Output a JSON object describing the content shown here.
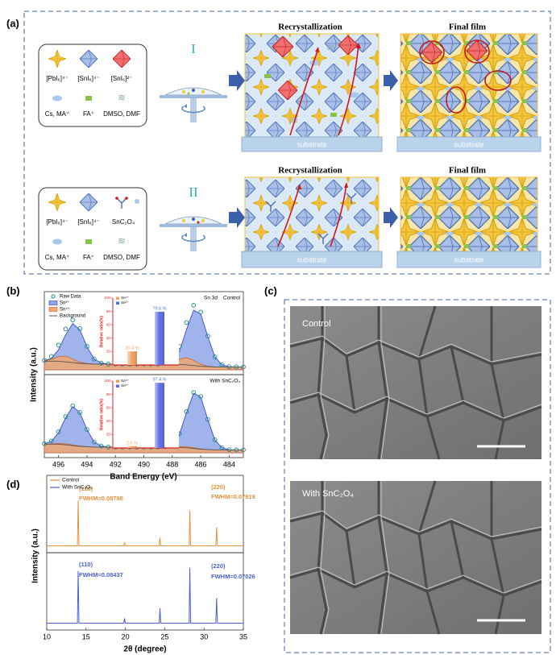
{
  "figure": {
    "panel_labels": [
      "(a)",
      "(b)",
      "(c)",
      "(d)"
    ],
    "a": {
      "routes": [
        "I",
        "II"
      ],
      "stage_titles": [
        "Recrystallization",
        "Final film"
      ],
      "substrate": "substrate",
      "legend_I": [
        "[PbI₆]⁴⁻",
        "[SnI₆]⁴⁻",
        "[SnI₆]²⁻",
        "Cs, MA⁺",
        "FA⁺",
        "DMSO, DMF"
      ],
      "legend_II": [
        "[PbI₆]⁴⁻",
        "[SnI₆]⁴⁻",
        "SnC₂O₄",
        "Cs, MA⁺",
        "FA⁺",
        "DMSO, DMF"
      ]
    },
    "c": {
      "images": [
        "Control",
        "With SnC₂O₄"
      ]
    }
  },
  "chart_data": [
    {
      "type": "line",
      "xlabel": "Band Energy (eV)",
      "ylabel": "Intensity (a.u.)",
      "annotation": "Sn 3d",
      "xlim": [
        497,
        483
      ],
      "xticks": [
        496,
        494,
        492,
        490,
        488,
        486,
        484
      ],
      "ylim": [
        0,
        100
      ],
      "x": [
        497,
        496.5,
        496,
        495.5,
        495,
        494.5,
        494,
        493.5,
        493,
        492.5,
        492,
        491.5,
        491,
        490.5,
        490,
        489.5,
        489,
        488.5,
        488,
        487.5,
        487,
        486.5,
        486,
        485.5,
        485,
        484.5,
        484,
        483.5,
        483
      ],
      "panels": [
        {
          "title": "Control",
          "series": [
            {
              "name": "Raw Data",
              "color": "#178a86",
              "values": [
                13.1,
                18.6,
                34.4,
                57,
                69.4,
                57.5,
                32.7,
                15,
                9.4,
                8,
                8,
                8,
                8,
                8,
                8,
                8,
                8,
                9.1,
                14.5,
                32.5,
                66,
                90,
                80.5,
                47,
                18,
                7,
                4.4,
                4,
                4
              ]
            },
            {
              "name": "Sn²⁺",
              "color": "#2a3fbf",
              "values": [
                12.6,
                16,
                28,
                49,
                64.5,
                56,
                32.5,
                15,
                9.4,
                8,
                8,
                8,
                8,
                8,
                8,
                8,
                8,
                8.6,
                12,
                25.5,
                56,
                83,
                78,
                46.5,
                18,
                7,
                4.4,
                4,
                4
              ]
            },
            {
              "name": "Sn⁴⁺",
              "color": "#d0602a",
              "values": [
                12.5,
                14.6,
                18.4,
                19,
                14.9,
                10.5,
                8.7,
                8,
                8,
                8,
                8,
                8,
                8,
                8,
                8,
                8,
                8,
                8.5,
                10.5,
                14.5,
                17,
                13,
                7.5,
                5,
                4,
                4,
                4,
                4,
                4
              ]
            },
            {
              "name": "Background",
              "color": "#555555",
              "values": [
                12,
                12,
                12,
                11,
                10,
                9,
                8.5,
                8,
                8,
                8,
                8,
                8,
                8,
                8,
                8,
                8,
                8,
                8,
                8,
                7.5,
                7,
                6,
                5,
                4.5,
                4,
                4,
                4,
                4,
                4
              ]
            }
          ],
          "inset": {
            "type": "bar",
            "ylabel": "Relative ratio(%)",
            "ylim": [
              0,
              100
            ],
            "yticks": [
              0,
              20,
              40,
              60,
              80,
              100
            ],
            "categories": [
              "Sn⁴⁺",
              "Sn²⁺"
            ],
            "colors": [
              "#f0a060",
              "#5a6ee0"
            ],
            "values": [
              20.4,
              79.6
            ],
            "value_labels": [
              "20.4 %",
              "79.6 %"
            ]
          }
        },
        {
          "title": "With SnC₂O₄",
          "series": [
            {
              "color": "#178a86",
              "values": [
                12.7,
                16.5,
                29.2,
                50.5,
                65.4,
                56.3,
                32.5,
                15,
                9.4,
                8,
                8,
                8,
                8,
                8,
                8,
                8,
                8,
                8.6,
                12.4,
                26.5,
                57.5,
                84,
                78.4,
                46.5,
                18,
                7,
                4.4,
                4,
                4
              ]
            },
            {
              "color": "#2a3fbf",
              "values": [
                12.6,
                16,
                28,
                49,
                64.5,
                56,
                32.5,
                15,
                9.4,
                8,
                8,
                8,
                8,
                8,
                8,
                8,
                8,
                8.6,
                12,
                25.5,
                56,
                83,
                78,
                46.5,
                18,
                7,
                4.4,
                4,
                4
              ]
            },
            {
              "color": "#d0602a",
              "values": [
                12.1,
                12.5,
                13.2,
                12.5,
                10.9,
                9.3,
                8.5,
                8,
                8,
                8,
                8,
                8,
                8,
                8,
                8,
                8,
                8,
                8,
                8.4,
                8.5,
                8.5,
                7,
                5.4,
                4.5,
                4,
                4,
                4,
                4,
                4
              ]
            },
            {
              "color": "#555555",
              "values": [
                12,
                12,
                12,
                11,
                10,
                9,
                8.5,
                8,
                8,
                8,
                8,
                8,
                8,
                8,
                8,
                8,
                8,
                8,
                8,
                7.5,
                7,
                6,
                5,
                4.5,
                4,
                4,
                4,
                4,
                4
              ]
            }
          ],
          "inset": {
            "type": "bar",
            "ylabel": "Relative ratio(%)",
            "ylim": [
              0,
              100
            ],
            "yticks": [
              0,
              20,
              40,
              60,
              80,
              100
            ],
            "categories": [
              "Sn⁴⁺",
              "Sn²⁺"
            ],
            "colors": [
              "#f0a060",
              "#5a6ee0"
            ],
            "values": [
              2.6,
              97.4
            ],
            "value_labels": [
              "2.6 %",
              "97.4 %"
            ]
          }
        }
      ]
    },
    {
      "type": "line",
      "xlabel": "2θ (degree)",
      "ylabel": "Intensity (a.u.)",
      "xlim": [
        10,
        35
      ],
      "xticks": [
        10,
        15,
        20,
        25,
        30,
        35
      ],
      "ylim": [
        0,
        100
      ],
      "x": [
        10,
        13.9,
        14,
        14.1,
        19.8,
        19.9,
        20,
        24.3,
        24.4,
        24.5,
        28.1,
        28.2,
        28.3,
        31.5,
        31.6,
        31.7,
        35
      ],
      "series": [
        {
          "name": "Control",
          "color": "#e8913a",
          "values": [
            3,
            3,
            70,
            3,
            3,
            8,
            3,
            3,
            15,
            3,
            3,
            55,
            3,
            3,
            30,
            3,
            3
          ],
          "annotations": [
            "(110)",
            "FWHM=0.08798",
            "(220)",
            "FWHM=0.07919"
          ]
        },
        {
          "name": "With SnC₂O₄",
          "color": "#4a5fd6",
          "values": [
            3,
            3,
            80,
            3,
            3,
            10,
            3,
            3,
            25,
            3,
            3,
            85,
            3,
            3,
            40,
            3,
            3
          ],
          "annotations": [
            "(110)",
            "FWHM=0.08437",
            "(220)",
            "FWHM=0.07026"
          ]
        }
      ]
    }
  ]
}
